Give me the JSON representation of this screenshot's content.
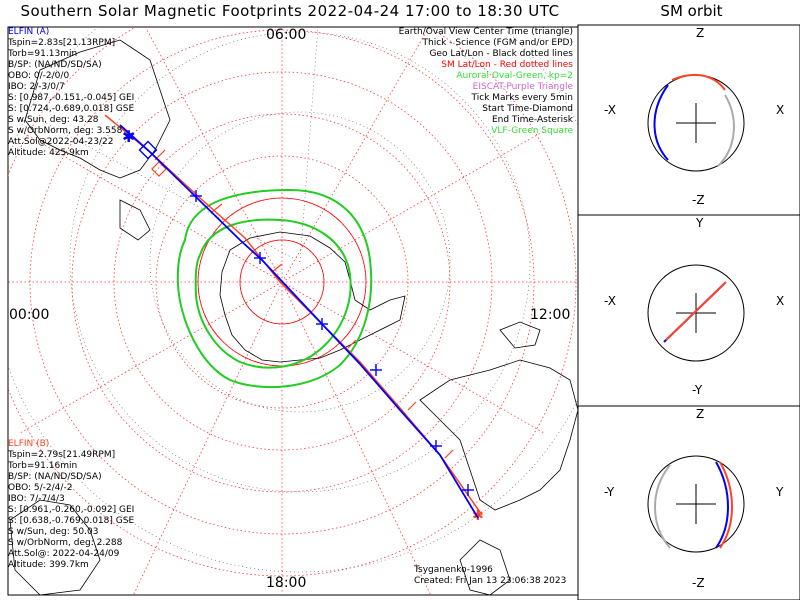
{
  "title": "Southern Solar Magnetic Footprints 2022-04-24 17:00 to 18:30 UTC",
  "orbit_title": "SM orbit",
  "map": {
    "top_label": "06:00",
    "left_label": "00:00",
    "right_label": "12:00",
    "bottom_label": "18:00"
  },
  "elfin_a": {
    "name": "ELFIN (A)",
    "color": "#0000ff",
    "lines": [
      "Tspin=2.83s[21.13RPM]",
      "Torb=91.13min",
      "B/SP: (NA/ND/SD/SA)",
      "OBO: 0/-2/0/0",
      "IBO: 2/-3/0/7",
      "S: [0.987,-0.151,-0.045] GEI",
      "S: [0.724,-0.689,0.018] GSE",
      "S w/Sun, deg: 43.28",
      "S w/OrbNorm, deg: 3.558",
      "Att.Sol@2022-04-23/22",
      "Altitude: 425.9km"
    ]
  },
  "elfin_b": {
    "name": "ELFIN (B)",
    "color": "#ff4422",
    "lines": [
      "Tspin=2.79s[21.49RPM]",
      "Torb=91.16min",
      "B/SP: (NA/ND/SD/SA)",
      "OBO: 5/-2/4/-2",
      "IBO: 7/-7/4/3",
      "S: [0.961,-0.260,-0.092] GEI",
      "S: [0.638,-0.769,0.018] GSE",
      "S w/Sun, deg: 50.03",
      "S w/OrbNorm, deg: 2.288",
      "Att.Sol@: 2022-04-24/09",
      "Altitude: 399.7km"
    ]
  },
  "legend": [
    {
      "text": "Earth/Oval View Center Time (triangle)",
      "color": "#000000"
    },
    {
      "text": "Thick - Science (FGM and/or EPD)",
      "color": "#000000"
    },
    {
      "text": "Geo Lat/Lon - Black dotted lines",
      "color": "#000000"
    },
    {
      "text": "SM Lat/Lon - Red dotted lines",
      "color": "#ff0000"
    },
    {
      "text": "Auroral Oval-Green, kp=2",
      "color": "#33dd33"
    },
    {
      "text": "EISCAT-Purple Triangle",
      "color": "#cc66cc"
    },
    {
      "text": "Tick Marks every 5min",
      "color": "#000000"
    },
    {
      "text": "Start Time-Diamond",
      "color": "#000000"
    },
    {
      "text": "End Time-Asterisk",
      "color": "#000000"
    },
    {
      "text": "VLF-Green Square",
      "color": "#33dd33"
    }
  ],
  "footer": {
    "credit": "Tsyganenko-1996",
    "created": "Created: Fri Jan 13 23:06:38 2023"
  },
  "orbit_panels": [
    {
      "top": "Z",
      "bottom": "-Z",
      "left": "-X",
      "right": "X"
    },
    {
      "top": "Y",
      "bottom": "-Y",
      "left": "-X",
      "right": "X"
    },
    {
      "top": "Z",
      "bottom": "-Z",
      "left": "-Y",
      "right": "Y"
    }
  ],
  "chart_data": {
    "type": "polar map",
    "center": "South magnetic pole",
    "series": [
      {
        "name": "ELFIN (A)",
        "color": "#0000ff"
      },
      {
        "name": "ELFIN (B)",
        "color": "#ff4422"
      }
    ],
    "auroral_oval_kp": 2
  }
}
